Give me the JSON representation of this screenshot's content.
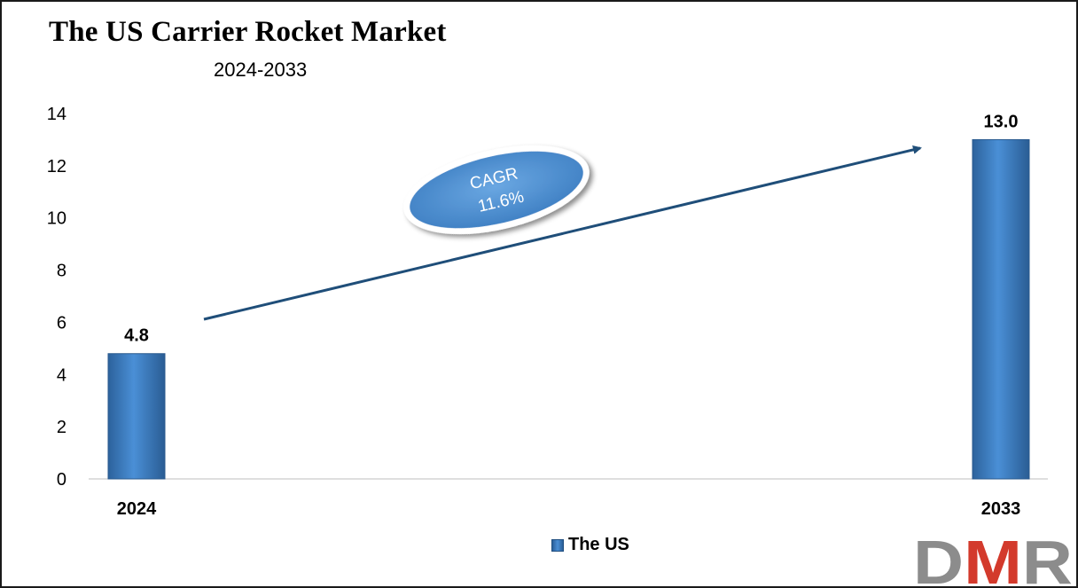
{
  "chart_data": {
    "type": "bar",
    "title": "The US Carrier Rocket Market",
    "subtitle": "2024-2033",
    "categories": [
      "2024",
      "2033"
    ],
    "series": [
      {
        "name": "The US",
        "values": [
          4.8,
          13.0
        ],
        "labels": [
          "4.8",
          "13.0"
        ],
        "color": "#3b7dc4"
      }
    ],
    "ylim": [
      0,
      14
    ],
    "yticks": [
      0,
      2,
      4,
      6,
      8,
      10,
      12,
      14
    ],
    "grid": false,
    "legend_position": "bottom",
    "annotation": {
      "line1": "CAGR",
      "line2": "11.6%"
    }
  },
  "logo": {
    "text": "DMR",
    "colors": {
      "d": "#8c8c8c",
      "m": "#d33a2c",
      "r": "#8c8c8c"
    }
  }
}
